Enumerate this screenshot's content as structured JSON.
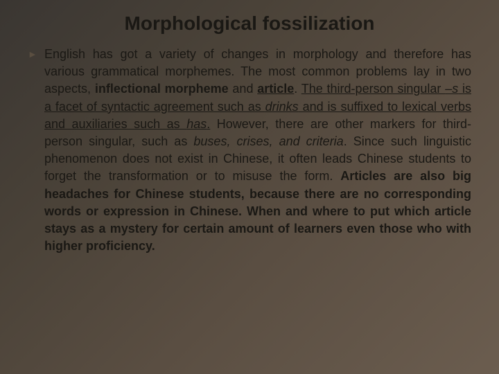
{
  "title": "Morphological fossilization",
  "bullet_marker": "►",
  "text": {
    "p1": "English has got a variety of changes in morphology and therefore has various grammatical morphemes. The most common problems lay in two aspects, ",
    "inflectional": "inflectional morpheme",
    "and1": " and ",
    "article": "article",
    "period1": ". ",
    "u1": "The third-person singular ",
    "dash_s": "–s",
    "u2": " is a facet of syntactic agreement such as ",
    "drinks": "drinks",
    "u3": " and is suffixed to lexical verbs and auxiliaries such as ",
    "has": "has",
    "period2": ".",
    "p2": " However, there are other markers for third-person singular, such as ",
    "buses": "buses, crises, and criteria",
    "p3": ". Since such linguistic phenomenon does not exist in Chinese, it often leads Chinese students to forget the transformation or to misuse the form. ",
    "bold_tail": "Articles are also big headaches for Chinese students, because there are no corresponding words or expression in Chinese. When and where to put which article stays as a mystery for certain amount of learners even those who with higher proficiency."
  },
  "colors": {
    "bg_start": "#3a3632",
    "bg_end": "#6b5d4f",
    "text": "#1a1814",
    "bullet": "#5a4e40"
  },
  "typography": {
    "title_fontsize": 28,
    "body_fontsize": 18,
    "font_family": "Verdana"
  }
}
